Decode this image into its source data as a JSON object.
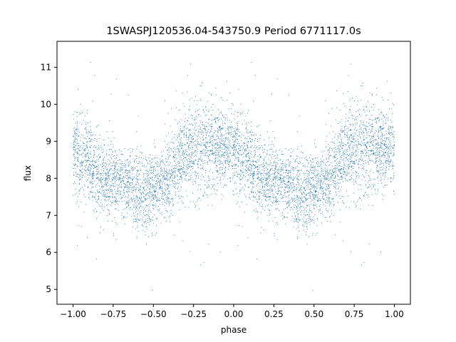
{
  "chart_data": {
    "type": "scatter",
    "title": "1SWASPJ120536.04-543750.9 Period 6771117.0s",
    "xlabel": "phase",
    "ylabel": "flux",
    "xlim": [
      -1.1,
      1.1
    ],
    "ylim": [
      4.6,
      11.7
    ],
    "grid": false,
    "marker_color": "#1f77b4",
    "x_ticks": [
      -1.0,
      -0.75,
      -0.5,
      -0.25,
      0.0,
      0.25,
      0.5,
      0.75,
      1.0
    ],
    "x_tick_labels": [
      "−1.00",
      "−0.75",
      "−0.50",
      "−0.25",
      "0.00",
      "0.25",
      "0.50",
      "0.75",
      "1.00"
    ],
    "y_ticks": [
      5,
      6,
      7,
      8,
      9,
      10,
      11
    ],
    "y_tick_labels": [
      "5",
      "6",
      "7",
      "8",
      "9",
      "10",
      "11"
    ],
    "profile": {
      "phase": [
        0.0,
        0.05,
        0.1,
        0.15,
        0.2,
        0.25,
        0.3,
        0.35,
        0.4,
        0.45,
        0.5,
        0.55,
        0.6,
        0.65,
        0.7,
        0.75,
        0.8,
        0.85,
        0.9,
        0.95,
        1.0
      ],
      "median_flux": [
        8.8,
        8.6,
        8.4,
        8.1,
        8.0,
        7.9,
        7.9,
        7.8,
        7.5,
        7.5,
        7.8,
        7.8,
        8.0,
        8.4,
        8.8,
        8.8,
        8.8,
        8.8,
        8.8,
        8.8,
        8.8
      ],
      "scatter": [
        0.55,
        0.6,
        0.55,
        0.55,
        0.5,
        0.5,
        0.45,
        0.45,
        0.55,
        0.55,
        0.5,
        0.5,
        0.5,
        0.55,
        0.6,
        0.6,
        0.7,
        0.6,
        0.55,
        0.55,
        0.55
      ]
    }
  }
}
